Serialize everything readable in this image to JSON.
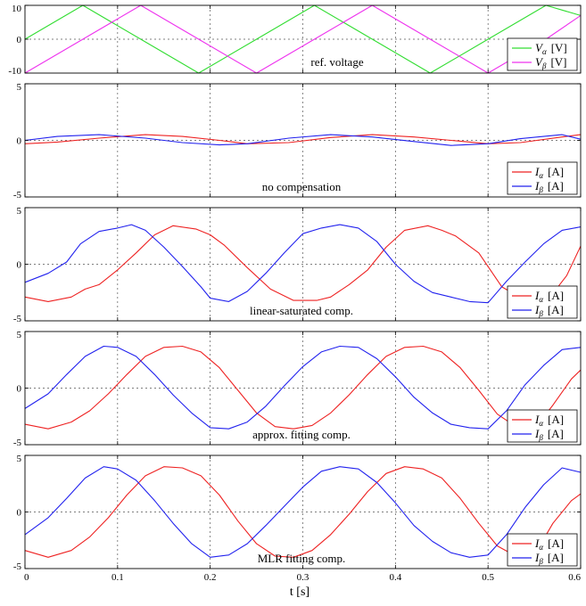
{
  "chart_data": [
    {
      "type": "line",
      "caption": "ref. voltage",
      "ylim": [
        -10,
        10
      ],
      "yticks": [
        "10",
        "0",
        "-10"
      ],
      "grid": true,
      "legend_position": "bottom-right",
      "series": [
        {
          "name": "V_α [V]",
          "sym": "V",
          "sub": "α",
          "unit": "[V]",
          "color": "#33dd33",
          "x": [
            0.0,
            0.0625,
            0.125,
            0.1875,
            0.25,
            0.3125,
            0.375,
            0.4375,
            0.5,
            0.5625,
            0.6
          ],
          "y": [
            0,
            10,
            0,
            -10,
            0,
            10,
            0,
            -10,
            0,
            10,
            7
          ]
        },
        {
          "name": "V_β [V]",
          "sym": "V",
          "sub": "β",
          "unit": "[V]",
          "color": "#ee33ee",
          "x": [
            0.0,
            0.0625,
            0.125,
            0.1875,
            0.25,
            0.3125,
            0.375,
            0.4375,
            0.5,
            0.5625,
            0.6
          ],
          "y": [
            -10,
            0,
            10,
            0,
            -10,
            0,
            10,
            0,
            -10,
            0,
            7
          ]
        }
      ]
    },
    {
      "type": "line",
      "caption": "no compensation",
      "ylim": [
        -5,
        5
      ],
      "yticks": [
        "5",
        "0",
        "-5"
      ],
      "grid": true,
      "legend_position": "bottom-right",
      "series": [
        {
          "name": "I_α [A]",
          "sym": "I",
          "sub": "α",
          "unit": "[A]",
          "color": "#ee2222",
          "x": [
            0.0,
            0.035,
            0.08,
            0.13,
            0.17,
            0.21,
            0.24,
            0.285,
            0.33,
            0.375,
            0.42,
            0.46,
            0.5,
            0.535,
            0.58,
            0.6
          ],
          "y": [
            -0.3,
            -0.15,
            0.2,
            0.5,
            0.35,
            0.0,
            -0.3,
            -0.2,
            0.25,
            0.5,
            0.3,
            0.0,
            -0.3,
            -0.2,
            0.3,
            0.5
          ]
        },
        {
          "name": "I_β [A]",
          "sym": "I",
          "sub": "β",
          "unit": "[A]",
          "color": "#2222ee",
          "x": [
            0.0,
            0.035,
            0.08,
            0.13,
            0.17,
            0.21,
            0.24,
            0.285,
            0.33,
            0.375,
            0.42,
            0.46,
            0.5,
            0.535,
            0.58,
            0.6
          ],
          "y": [
            0.0,
            0.35,
            0.5,
            0.2,
            -0.2,
            -0.4,
            -0.3,
            0.2,
            0.5,
            0.3,
            -0.1,
            -0.45,
            -0.3,
            0.15,
            0.5,
            0.1
          ]
        }
      ]
    },
    {
      "type": "line",
      "caption": "linear-saturated comp.",
      "ylim": [
        -5,
        5
      ],
      "yticks": [
        "5",
        "0",
        "-5"
      ],
      "grid": true,
      "legend_position": "bottom-right",
      "series": [
        {
          "name": "I_α [A]",
          "sym": "I",
          "sub": "α",
          "unit": "[A]",
          "color": "#ee2222",
          "x": [
            0.0,
            0.025,
            0.05,
            0.065,
            0.08,
            0.1,
            0.12,
            0.14,
            0.16,
            0.185,
            0.2,
            0.215,
            0.24,
            0.265,
            0.29,
            0.315,
            0.33,
            0.35,
            0.37,
            0.39,
            0.41,
            0.435,
            0.45,
            0.465,
            0.49,
            0.515,
            0.54,
            0.565,
            0.585,
            0.6
          ],
          "y": [
            -2.9,
            -3.3,
            -2.9,
            -2.2,
            -1.8,
            -0.5,
            1.0,
            2.6,
            3.4,
            3.1,
            2.6,
            1.7,
            -0.3,
            -2.2,
            -3.2,
            -3.2,
            -2.9,
            -1.8,
            -0.5,
            1.5,
            3.0,
            3.4,
            3.0,
            2.5,
            1.0,
            -2.0,
            -3.2,
            -3.1,
            -1.0,
            1.6
          ]
        },
        {
          "name": "I_β [A]",
          "sym": "I",
          "sub": "β",
          "unit": "[A]",
          "color": "#2222ee",
          "x": [
            0.0,
            0.025,
            0.045,
            0.06,
            0.08,
            0.1,
            0.115,
            0.13,
            0.15,
            0.17,
            0.19,
            0.2,
            0.22,
            0.24,
            0.26,
            0.28,
            0.3,
            0.32,
            0.34,
            0.36,
            0.38,
            0.4,
            0.42,
            0.44,
            0.46,
            0.48,
            0.5,
            0.52,
            0.54,
            0.56,
            0.58,
            0.6
          ],
          "y": [
            -1.6,
            -0.8,
            0.2,
            1.8,
            2.9,
            3.2,
            3.5,
            3.0,
            1.5,
            -0.2,
            -2.0,
            -3.0,
            -3.3,
            -2.4,
            -0.8,
            1.0,
            2.7,
            3.2,
            3.5,
            3.2,
            2.0,
            0.0,
            -1.5,
            -2.5,
            -2.9,
            -3.3,
            -3.4,
            -1.5,
            0.2,
            1.8,
            3.0,
            3.3
          ]
        }
      ]
    },
    {
      "type": "line",
      "caption": "approx. fitting comp.",
      "ylim": [
        -5,
        5
      ],
      "yticks": [
        "5",
        "0",
        "-5"
      ],
      "grid": true,
      "legend_position": "bottom-right",
      "series": [
        {
          "name": "I_α [A]",
          "sym": "I",
          "sub": "α",
          "unit": "[A]",
          "color": "#ee2222",
          "x": [
            0.0,
            0.025,
            0.05,
            0.07,
            0.09,
            0.11,
            0.13,
            0.15,
            0.17,
            0.19,
            0.21,
            0.23,
            0.25,
            0.27,
            0.29,
            0.31,
            0.33,
            0.35,
            0.37,
            0.39,
            0.41,
            0.43,
            0.45,
            0.47,
            0.49,
            0.51,
            0.53,
            0.55,
            0.57,
            0.59,
            0.6
          ],
          "y": [
            -3.2,
            -3.6,
            -3.0,
            -2.0,
            -0.5,
            1.2,
            2.8,
            3.6,
            3.7,
            3.2,
            1.8,
            -0.2,
            -2.2,
            -3.4,
            -3.6,
            -3.3,
            -2.2,
            -0.6,
            1.2,
            2.8,
            3.6,
            3.7,
            3.2,
            1.8,
            -0.2,
            -2.3,
            -3.4,
            -3.6,
            -1.5,
            0.8,
            1.6
          ]
        },
        {
          "name": "I_β [A]",
          "sym": "I",
          "sub": "β",
          "unit": "[A]",
          "color": "#2222ee",
          "x": [
            0.0,
            0.025,
            0.045,
            0.065,
            0.085,
            0.1,
            0.12,
            0.14,
            0.16,
            0.18,
            0.2,
            0.22,
            0.24,
            0.26,
            0.28,
            0.3,
            0.32,
            0.34,
            0.36,
            0.38,
            0.4,
            0.42,
            0.44,
            0.46,
            0.48,
            0.5,
            0.52,
            0.54,
            0.56,
            0.58,
            0.6
          ],
          "y": [
            -1.8,
            -0.5,
            1.2,
            2.8,
            3.7,
            3.6,
            2.8,
            1.2,
            -0.6,
            -2.2,
            -3.5,
            -3.6,
            -3.0,
            -1.6,
            0.2,
            1.9,
            3.2,
            3.7,
            3.6,
            2.6,
            1.0,
            -0.8,
            -2.2,
            -3.2,
            -3.5,
            -3.6,
            -2.0,
            0.3,
            2.0,
            3.4,
            3.6
          ]
        }
      ]
    },
    {
      "type": "line",
      "caption": "MLR fitting comp.",
      "ylim": [
        -5,
        5
      ],
      "yticks": [
        "5",
        "0",
        "-5"
      ],
      "grid": true,
      "legend_position": "bottom-right",
      "series": [
        {
          "name": "I_α [A]",
          "sym": "I",
          "sub": "α",
          "unit": "[A]",
          "color": "#ee2222",
          "x": [
            0.0,
            0.025,
            0.05,
            0.07,
            0.09,
            0.11,
            0.13,
            0.15,
            0.17,
            0.19,
            0.21,
            0.23,
            0.25,
            0.27,
            0.29,
            0.31,
            0.33,
            0.35,
            0.37,
            0.39,
            0.41,
            0.43,
            0.45,
            0.47,
            0.49,
            0.51,
            0.53,
            0.55,
            0.57,
            0.59,
            0.6
          ],
          "y": [
            -3.4,
            -4.0,
            -3.4,
            -2.2,
            -0.5,
            1.5,
            3.2,
            4.0,
            3.9,
            3.2,
            1.5,
            -0.8,
            -2.8,
            -3.9,
            -4.0,
            -3.4,
            -2.0,
            -0.2,
            1.8,
            3.4,
            4.0,
            3.8,
            3.0,
            1.2,
            -1.0,
            -3.0,
            -3.9,
            -3.8,
            -1.0,
            1.0,
            1.6
          ]
        },
        {
          "name": "I_β [A]",
          "sym": "I",
          "sub": "β",
          "unit": "[A]",
          "color": "#2222ee",
          "x": [
            0.0,
            0.025,
            0.045,
            0.065,
            0.085,
            0.1,
            0.12,
            0.14,
            0.16,
            0.18,
            0.2,
            0.22,
            0.24,
            0.26,
            0.28,
            0.3,
            0.32,
            0.34,
            0.36,
            0.38,
            0.4,
            0.42,
            0.44,
            0.46,
            0.48,
            0.5,
            0.52,
            0.54,
            0.56,
            0.58,
            0.6
          ],
          "y": [
            -2.0,
            -0.5,
            1.2,
            3.0,
            4.0,
            3.8,
            2.8,
            1.0,
            -1.0,
            -2.8,
            -4.0,
            -3.8,
            -2.8,
            -1.2,
            0.5,
            2.2,
            3.6,
            4.0,
            3.8,
            2.6,
            0.8,
            -1.2,
            -2.6,
            -3.6,
            -4.0,
            -3.8,
            -2.0,
            0.4,
            2.4,
            3.9,
            3.5
          ]
        }
      ]
    }
  ],
  "x_axis": {
    "label": "t [s]",
    "xlim": [
      0,
      0.6
    ],
    "ticks": [
      {
        "v": 0,
        "t": "0"
      },
      {
        "v": 0.1,
        "t": "0.1"
      },
      {
        "v": 0.2,
        "t": "0.2"
      },
      {
        "v": 0.3,
        "t": "0.3"
      },
      {
        "v": 0.4,
        "t": "0.4"
      },
      {
        "v": 0.5,
        "t": "0.5"
      },
      {
        "v": 0.6,
        "t": "0.6"
      }
    ]
  }
}
